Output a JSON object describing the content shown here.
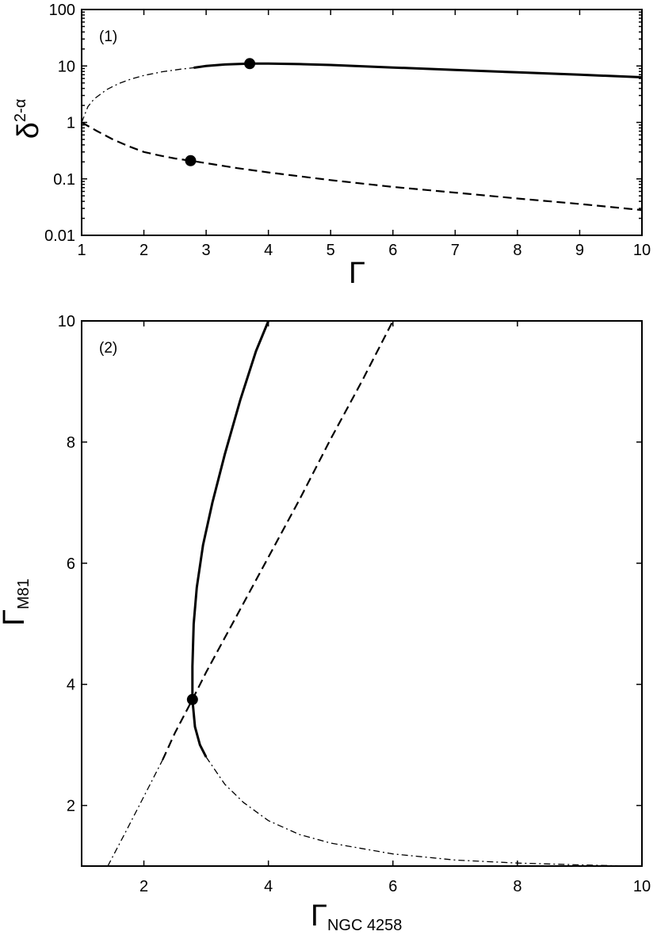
{
  "chart_data": [
    {
      "type": "line",
      "panel_label": "(1)",
      "xlabel": "Γ",
      "ylabel_main": "δ",
      "ylabel_sup": "2-α",
      "xlim": [
        1,
        10
      ],
      "ylim": [
        0.01,
        100
      ],
      "yscale": "log",
      "xticks": [
        1,
        2,
        3,
        4,
        5,
        6,
        7,
        8,
        9,
        10
      ],
      "yticks": [
        0.01,
        0.1,
        1,
        10,
        100
      ],
      "ytick_labels": [
        "0.01",
        "0.1",
        "1",
        "10",
        "100"
      ],
      "grid": false,
      "series": [
        {
          "style": "dashdot",
          "x": [
            1.0,
            1.1,
            1.2,
            1.4,
            1.6,
            1.8,
            2.0,
            2.3,
            2.6,
            2.8
          ],
          "y": [
            1.0,
            1.9,
            2.6,
            3.8,
            4.9,
            5.9,
            6.8,
            7.9,
            8.8,
            9.3
          ]
        },
        {
          "style": "solid",
          "x": [
            2.8,
            3.0,
            3.3,
            3.7,
            4.0,
            4.5,
            5.0,
            6.0,
            7.0,
            8.0,
            9.0,
            10.0
          ],
          "y": [
            9.3,
            10.0,
            10.6,
            11.0,
            11.0,
            10.8,
            10.4,
            9.4,
            8.5,
            7.7,
            7.0,
            6.3
          ]
        },
        {
          "style": "dashed",
          "x": [
            1.0,
            1.25,
            1.5,
            1.75,
            2.0,
            2.25,
            2.5,
            2.75,
            3.0,
            3.5,
            4.0,
            5.0,
            6.0,
            7.0,
            8.0,
            9.0,
            10.0
          ],
          "y": [
            1.0,
            0.7,
            0.5,
            0.38,
            0.3,
            0.26,
            0.23,
            0.21,
            0.19,
            0.155,
            0.13,
            0.095,
            0.072,
            0.057,
            0.045,
            0.036,
            0.028
          ]
        }
      ],
      "markers": [
        {
          "x": 3.7,
          "y": 11.0
        },
        {
          "x": 2.75,
          "y": 0.21
        }
      ]
    },
    {
      "type": "line",
      "panel_label": "(2)",
      "xlabel_main": "Γ",
      "xlabel_sub": "NGC 4258",
      "ylabel_main": "Γ",
      "ylabel_sub": "M81",
      "xlim": [
        1,
        10
      ],
      "ylim": [
        1,
        10
      ],
      "xticks": [
        2,
        4,
        6,
        8,
        10
      ],
      "yticks": [
        2,
        4,
        6,
        8,
        10
      ],
      "grid": false,
      "series": [
        {
          "style": "solid",
          "x": [
            2.78,
            2.78,
            2.8,
            2.85,
            2.95,
            3.1,
            3.3,
            3.55,
            3.8,
            4.0
          ],
          "y": [
            3.75,
            4.3,
            5.0,
            5.6,
            6.3,
            7.0,
            7.8,
            8.7,
            9.5,
            10.0
          ]
        },
        {
          "style": "solid",
          "x": [
            2.78,
            2.82,
            2.9,
            3.0
          ],
          "y": [
            3.75,
            3.3,
            3.0,
            2.8
          ]
        },
        {
          "style": "dashdot",
          "x": [
            3.0,
            3.3,
            3.6,
            4.0,
            4.5,
            5.0,
            6.0,
            7.0,
            8.0,
            9.0,
            9.8
          ],
          "y": [
            2.8,
            2.35,
            2.05,
            1.75,
            1.52,
            1.38,
            1.2,
            1.1,
            1.05,
            1.02,
            1.0
          ]
        },
        {
          "style": "dashed",
          "x": [
            2.3,
            2.5,
            2.78,
            3.0,
            3.5,
            4.0,
            4.5,
            5.0,
            5.5,
            6.0
          ],
          "y": [
            2.75,
            3.2,
            3.75,
            4.2,
            5.15,
            6.1,
            7.05,
            8.05,
            9.0,
            10.0
          ]
        },
        {
          "style": "dashdot",
          "x": [
            1.42,
            1.7,
            2.0,
            2.3
          ],
          "y": [
            1.0,
            1.55,
            2.15,
            2.75
          ]
        }
      ],
      "markers": [
        {
          "x": 2.78,
          "y": 3.75
        }
      ]
    }
  ]
}
